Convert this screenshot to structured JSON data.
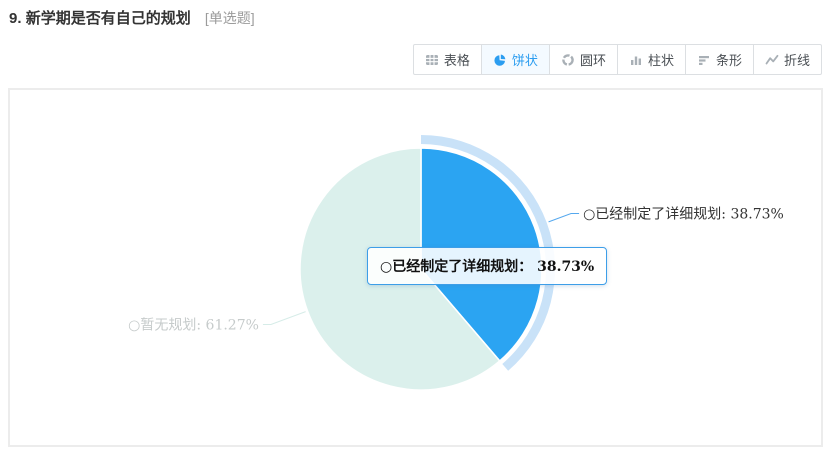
{
  "header": {
    "question_number": "9.",
    "question_title": "新学期是否有自己的规划",
    "question_type": "[单选题]"
  },
  "toolbar": {
    "active_color": "#2b9df0",
    "buttons": [
      {
        "label": "表格",
        "icon": "table-icon",
        "active": false
      },
      {
        "label": "饼状",
        "icon": "pie-icon",
        "active": true
      },
      {
        "label": "圆环",
        "icon": "donut-icon",
        "active": false
      },
      {
        "label": "柱状",
        "icon": "column-icon",
        "active": false
      },
      {
        "label": "条形",
        "icon": "bar-icon",
        "active": false
      },
      {
        "label": "折线",
        "icon": "line-icon",
        "active": false
      }
    ]
  },
  "chart_data": {
    "type": "pie",
    "title": "",
    "start_angle": "top",
    "direction": "clockwise",
    "unit": "%",
    "legend_position": "none",
    "highlight_halo_color": "#c9e2f8",
    "series": [
      {
        "name": "已经制定了详细规划",
        "value": 38.73,
        "color": "#2ba4f2",
        "label_text": "○已经制定了详细规划: 38.73%",
        "label_color": "#333333",
        "leader_color": "#55a8ee",
        "label_side": "right",
        "highlighted": true
      },
      {
        "name": "暂无规划",
        "value": 61.27,
        "color": "#dbf0ec",
        "label_text": "○暂无规划: 61.27%",
        "label_color": "#c6cbcb",
        "leader_color": "#d6ece8",
        "label_side": "left",
        "highlighted": false
      }
    ],
    "tooltip": {
      "text": "○已经制定了详细规划： 38.73%"
    }
  }
}
